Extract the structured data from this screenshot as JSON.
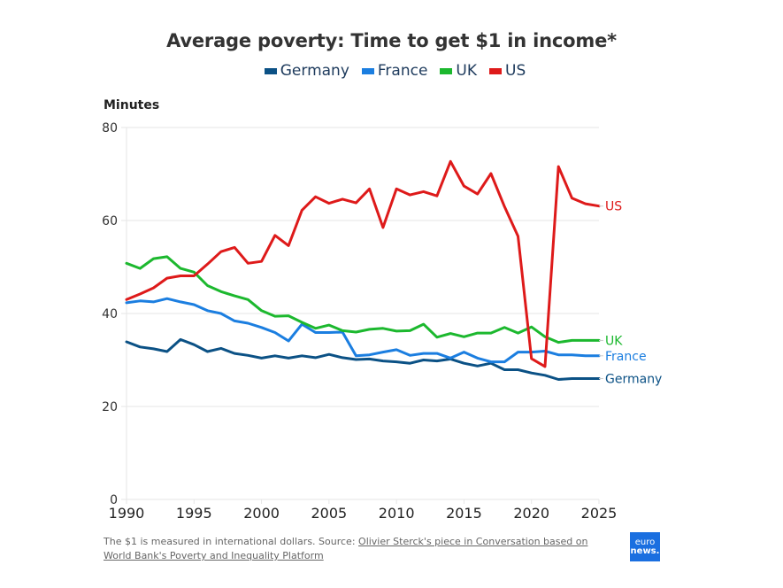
{
  "colors": {
    "Germany": "#0b5185",
    "France": "#1b7ee0",
    "UK": "#1cb82e",
    "US": "#de1a1a",
    "title": "#333333",
    "grid": "#e6e6e6",
    "logo_bg": "#1a6fe0"
  },
  "footer": {
    "note_prefix": "The $1 is measured in international dollars. Source: ",
    "source_link": "Olivier Sterck's piece in Conversation based on World Bank's Poverty and Inequality Platform"
  },
  "logo": {
    "line1": "euro",
    "line2": "news."
  },
  "chart_data": {
    "type": "line",
    "title": "Average poverty: Time to get $1 in income*",
    "xlabel": "",
    "ylabel": "Minutes",
    "xlim": [
      1990,
      2025
    ],
    "ylim": [
      0,
      80
    ],
    "grid": true,
    "legend": "top-center",
    "legend_entries": [
      "Germany",
      "France",
      "UK",
      "US"
    ],
    "xticks": [
      1990,
      1995,
      2000,
      2005,
      2010,
      2015,
      2020,
      2025
    ],
    "yticks": [
      0,
      20,
      40,
      60,
      80
    ],
    "x": [
      1990,
      1991,
      1992,
      1993,
      1994,
      1995,
      1996,
      1997,
      1998,
      1999,
      2000,
      2001,
      2002,
      2003,
      2004,
      2005,
      2006,
      2007,
      2008,
      2009,
      2010,
      2011,
      2012,
      2013,
      2014,
      2015,
      2016,
      2017,
      2018,
      2019,
      2020,
      2021,
      2022,
      2023,
      2024,
      2025
    ],
    "series": [
      {
        "name": "Germany",
        "end_label": "Germany",
        "values": [
          33.9,
          32.8,
          32.4,
          31.8,
          34.4,
          33.3,
          31.8,
          32.5,
          31.4,
          31.0,
          30.4,
          30.9,
          30.4,
          30.9,
          30.5,
          31.2,
          30.5,
          30.1,
          30.2,
          29.8,
          29.6,
          29.3,
          30.0,
          29.8,
          30.2,
          29.3,
          28.7,
          29.3,
          27.9,
          27.9,
          27.2,
          26.7,
          25.8,
          26.0,
          26.0,
          26.0
        ]
      },
      {
        "name": "France",
        "end_label": "France",
        "values": [
          42.3,
          42.7,
          42.5,
          43.2,
          42.5,
          41.9,
          40.6,
          40.0,
          38.4,
          37.9,
          37.0,
          35.9,
          34.1,
          37.7,
          35.9,
          35.9,
          36.0,
          30.9,
          31.1,
          31.7,
          32.2,
          31.0,
          31.4,
          31.4,
          30.4,
          31.7,
          30.4,
          29.6,
          29.6,
          31.7,
          31.7,
          31.9,
          31.1,
          31.1,
          30.9,
          30.9
        ]
      },
      {
        "name": "UK",
        "end_label": "UK",
        "values": [
          50.8,
          49.7,
          51.8,
          52.2,
          49.7,
          48.9,
          46.0,
          44.7,
          43.8,
          43.0,
          40.6,
          39.4,
          39.5,
          38.1,
          36.8,
          37.5,
          36.3,
          36.0,
          36.6,
          36.8,
          36.2,
          36.3,
          37.7,
          34.9,
          35.7,
          35.0,
          35.8,
          35.8,
          37.0,
          35.8,
          37.1,
          35.0,
          33.8,
          34.2,
          34.2,
          34.2
        ]
      },
      {
        "name": "US",
        "end_label": "US",
        "values": [
          43.0,
          44.2,
          45.5,
          47.6,
          48.1,
          48.1,
          50.6,
          53.3,
          54.2,
          50.8,
          51.2,
          56.8,
          54.6,
          62.2,
          65.1,
          63.7,
          64.6,
          63.8,
          66.8,
          58.5,
          66.8,
          65.5,
          66.2,
          65.3,
          72.7,
          67.4,
          65.7,
          70.1,
          63.0,
          56.6,
          30.3,
          28.6,
          71.6,
          64.8,
          63.6,
          63.1
        ]
      }
    ]
  }
}
